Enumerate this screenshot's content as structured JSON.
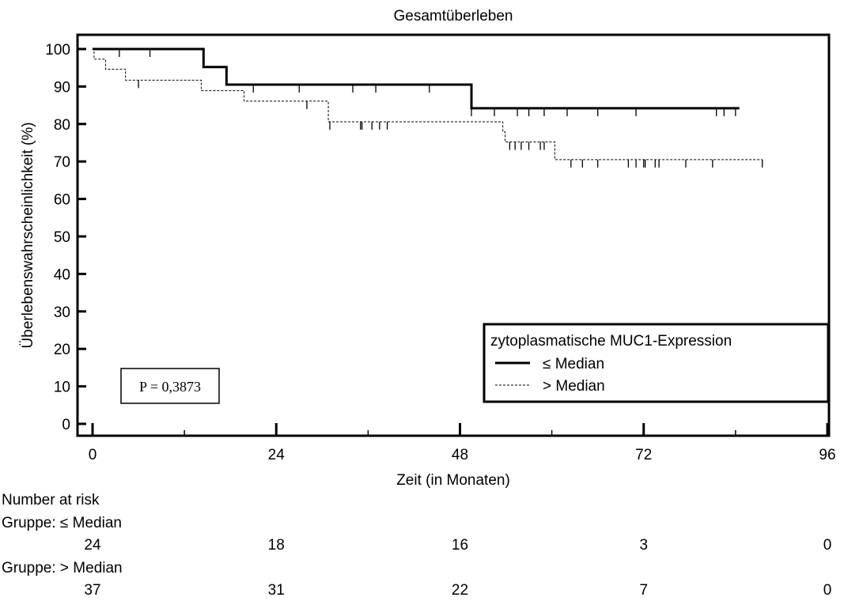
{
  "chart_data": {
    "type": "line",
    "subtype": "kaplan-meier",
    "title": "Gesamtüberleben",
    "xlabel": "Zeit (in Monaten)",
    "ylabel": "Überlebenswahrscheinlichkeit (%)",
    "xlim": [
      0,
      96
    ],
    "ylim": [
      0,
      100
    ],
    "xticks": [
      0,
      24,
      48,
      72,
      96
    ],
    "yticks": [
      0,
      10,
      20,
      30,
      40,
      50,
      60,
      70,
      80,
      90,
      100
    ],
    "grid": false,
    "legend": {
      "placement": "bottom-right",
      "title": "zytoplasmatische MUC1-Expression",
      "entries": [
        "≤ Median",
        "> Median"
      ]
    },
    "annotation": "P = 0,3873",
    "series": [
      {
        "name": "≤ Median",
        "style": "solid",
        "steps": [
          [
            0,
            100
          ],
          [
            14.5,
            95.2
          ],
          [
            17.5,
            90.5
          ],
          [
            49.5,
            84.2
          ],
          [
            84.5,
            84.2
          ]
        ],
        "censored": [
          [
            3.5,
            100
          ],
          [
            7.5,
            100
          ],
          [
            21,
            90.5
          ],
          [
            27,
            90.5
          ],
          [
            34,
            90.5
          ],
          [
            37,
            90.5
          ],
          [
            44,
            90.5
          ],
          [
            49.5,
            84.2
          ],
          [
            52.5,
            84.2
          ],
          [
            55.5,
            84.2
          ],
          [
            57,
            84.2
          ],
          [
            59,
            84.2
          ],
          [
            62,
            84.2
          ],
          [
            66,
            84.2
          ],
          [
            71,
            84.2
          ],
          [
            81.5,
            84.2
          ],
          [
            82.5,
            84.2
          ],
          [
            84,
            84.2
          ]
        ]
      },
      {
        "name": "> Median",
        "style": "dashed",
        "steps": [
          [
            0,
            100
          ],
          [
            0.2,
            97.3
          ],
          [
            1.7,
            94.6
          ],
          [
            4.3,
            91.7
          ],
          [
            14.2,
            88.9
          ],
          [
            19.8,
            86.1
          ],
          [
            30.8,
            80.6
          ],
          [
            53.6,
            77.9
          ],
          [
            53.9,
            75.2
          ],
          [
            60.4,
            70.5
          ],
          [
            87.5,
            70.5
          ]
        ],
        "censored": [
          [
            6,
            91.7
          ],
          [
            28,
            86.1
          ],
          [
            31,
            80.6
          ],
          [
            35,
            80.6
          ],
          [
            35.2,
            80.6
          ],
          [
            36.5,
            80.6
          ],
          [
            37.5,
            80.6
          ],
          [
            38.5,
            80.6
          ],
          [
            54.5,
            75.2
          ],
          [
            55.2,
            75.2
          ],
          [
            56,
            75.2
          ],
          [
            57,
            75.2
          ],
          [
            58.5,
            75.2
          ],
          [
            59,
            75.2
          ],
          [
            62.5,
            70.5
          ],
          [
            64,
            70.5
          ],
          [
            66,
            70.5
          ],
          [
            70,
            70.5
          ],
          [
            71,
            70.5
          ],
          [
            72,
            70.5
          ],
          [
            72.2,
            70.5
          ],
          [
            73.5,
            70.5
          ],
          [
            74,
            70.5
          ],
          [
            77.5,
            70.5
          ],
          [
            81,
            70.5
          ],
          [
            87.5,
            70.5
          ]
        ]
      }
    ],
    "number_at_risk": {
      "header": "Number at risk",
      "times": [
        0,
        24,
        48,
        72,
        96
      ],
      "groups": [
        {
          "label": "Gruppe: ≤ Median",
          "counts": [
            24,
            18,
            16,
            3,
            0
          ]
        },
        {
          "label": "Gruppe: > Median",
          "counts": [
            37,
            31,
            22,
            7,
            0
          ]
        }
      ]
    }
  }
}
